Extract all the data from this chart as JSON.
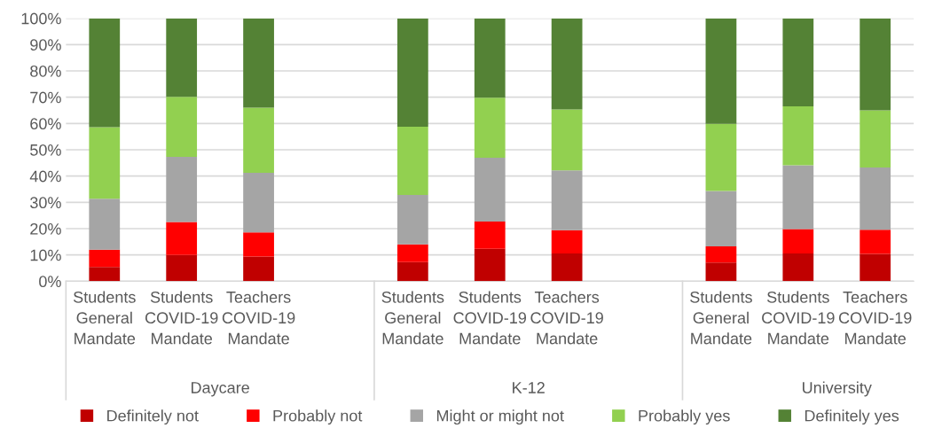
{
  "chart_data": {
    "type": "bar",
    "stacked": true,
    "categories": [
      "Students\nGeneral\nMandate",
      "Students\nCOVID-19\nMandate",
      "Teachers\nCOVID-19\nMandate",
      null,
      "Students\nGeneral\nMandate",
      "Students\nCOVID-19\nMandate",
      "Teachers\nCOVID-19\nMandate",
      null,
      "Students\nGeneral\nMandate",
      "Students\nCOVID-19\nMandate",
      "Teachers\nCOVID-19\nMandate"
    ],
    "series": [
      {
        "name": "Definitely not",
        "color": "#c00000",
        "values": [
          5.4,
          10.0,
          9.4,
          null,
          7.3,
          12.3,
          10.6,
          null,
          7.1,
          10.6,
          10.4
        ]
      },
      {
        "name": "Probably not",
        "color": "#ff0000",
        "values": [
          6.6,
          12.5,
          9.2,
          null,
          6.7,
          10.4,
          8.8,
          null,
          6.2,
          9.2,
          9.2
        ]
      },
      {
        "name": "Might or might not",
        "color": "#a5a5a5",
        "values": [
          19.4,
          24.8,
          22.6,
          null,
          18.8,
          24.3,
          22.8,
          null,
          21.0,
          24.3,
          23.7
        ]
      },
      {
        "name": "Probably yes",
        "color": "#92d050",
        "values": [
          27.2,
          22.8,
          24.8,
          null,
          26.0,
          22.8,
          23.1,
          null,
          25.6,
          22.4,
          21.7
        ]
      },
      {
        "name": "Definitely yes",
        "color": "#548235",
        "values": [
          41.4,
          29.9,
          34.0,
          null,
          41.2,
          30.2,
          34.7,
          null,
          40.1,
          33.5,
          35.0
        ]
      }
    ],
    "annotations": [
      "Daycare",
      "K-12",
      "University"
    ],
    "ylim": [
      0,
      100
    ],
    "yticks": [
      {
        "value": 0,
        "label": "0%"
      },
      {
        "value": 10,
        "label": "10%"
      },
      {
        "value": 20,
        "label": "20%"
      },
      {
        "value": 30,
        "label": "30%"
      },
      {
        "value": 40,
        "label": "40%"
      },
      {
        "value": 50,
        "label": "50%"
      },
      {
        "value": 60,
        "label": "60%"
      },
      {
        "value": 70,
        "label": "70%"
      },
      {
        "value": 80,
        "label": "80%"
      },
      {
        "value": 90,
        "label": "90%"
      },
      {
        "value": 100,
        "label": "100%"
      }
    ],
    "grid": "y",
    "legend": "bottom"
  }
}
